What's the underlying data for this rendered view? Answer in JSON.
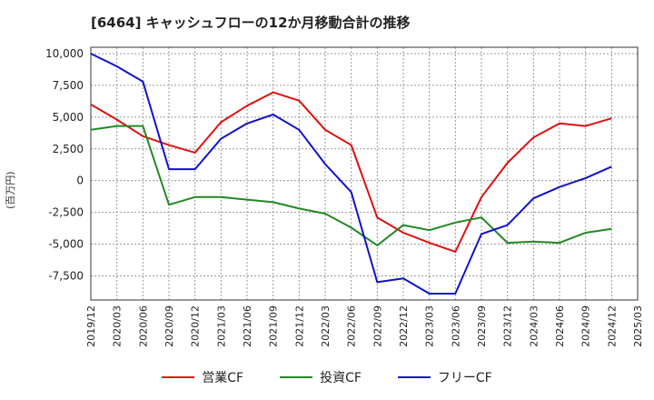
{
  "chart_data": {
    "type": "line",
    "title": "[6464]  キャッシュフローの12か月移動合計の推移",
    "ylabel": "(百万円)",
    "xlabel": "",
    "ylim": [
      -9400,
      10500
    ],
    "yticks": [
      10000,
      7500,
      5000,
      2500,
      0,
      -2500,
      -5000,
      -7500
    ],
    "ytick_labels": [
      "10,000",
      "7,500",
      "5,000",
      "2,500",
      "0",
      "-2,500",
      "-5,000",
      "-7,500"
    ],
    "xticks": [
      "2019/12",
      "2020/03",
      "2020/06",
      "2020/09",
      "2020/12",
      "2021/03",
      "2021/06",
      "2021/09",
      "2021/12",
      "2022/03",
      "2022/06",
      "2022/09",
      "2022/12",
      "2023/03",
      "2023/06",
      "2023/09",
      "2023/12",
      "2024/03",
      "2024/06",
      "2024/09",
      "2024/12",
      "2025/03"
    ],
    "series": [
      {
        "name": "営業CF",
        "color": "#dd1111",
        "values": [
          6000,
          4800,
          3500,
          2800,
          2200,
          4600,
          5900,
          6950,
          6300,
          4000,
          2800,
          -2900,
          -4100,
          -4900,
          -5600,
          -1300,
          1400,
          3400,
          4500,
          4300,
          4900
        ]
      },
      {
        "name": "投資CF",
        "color": "#228822",
        "values": [
          4000,
          4300,
          4300,
          -1900,
          -1300,
          -1300,
          -1500,
          -1700,
          -2200,
          -2600,
          -3700,
          -5100,
          -3500,
          -3900,
          -3300,
          -2900,
          -4900,
          -4800,
          -4900,
          -4100,
          -3800
        ]
      },
      {
        "name": "フリーCF",
        "color": "#1111cc",
        "values": [
          10000,
          9000,
          7800,
          900,
          900,
          3300,
          4500,
          5200,
          4000,
          1300,
          -900,
          -8000,
          -7700,
          -8900,
          -8900,
          -4200,
          -3500,
          -1400,
          -500,
          200,
          1100
        ]
      }
    ]
  }
}
